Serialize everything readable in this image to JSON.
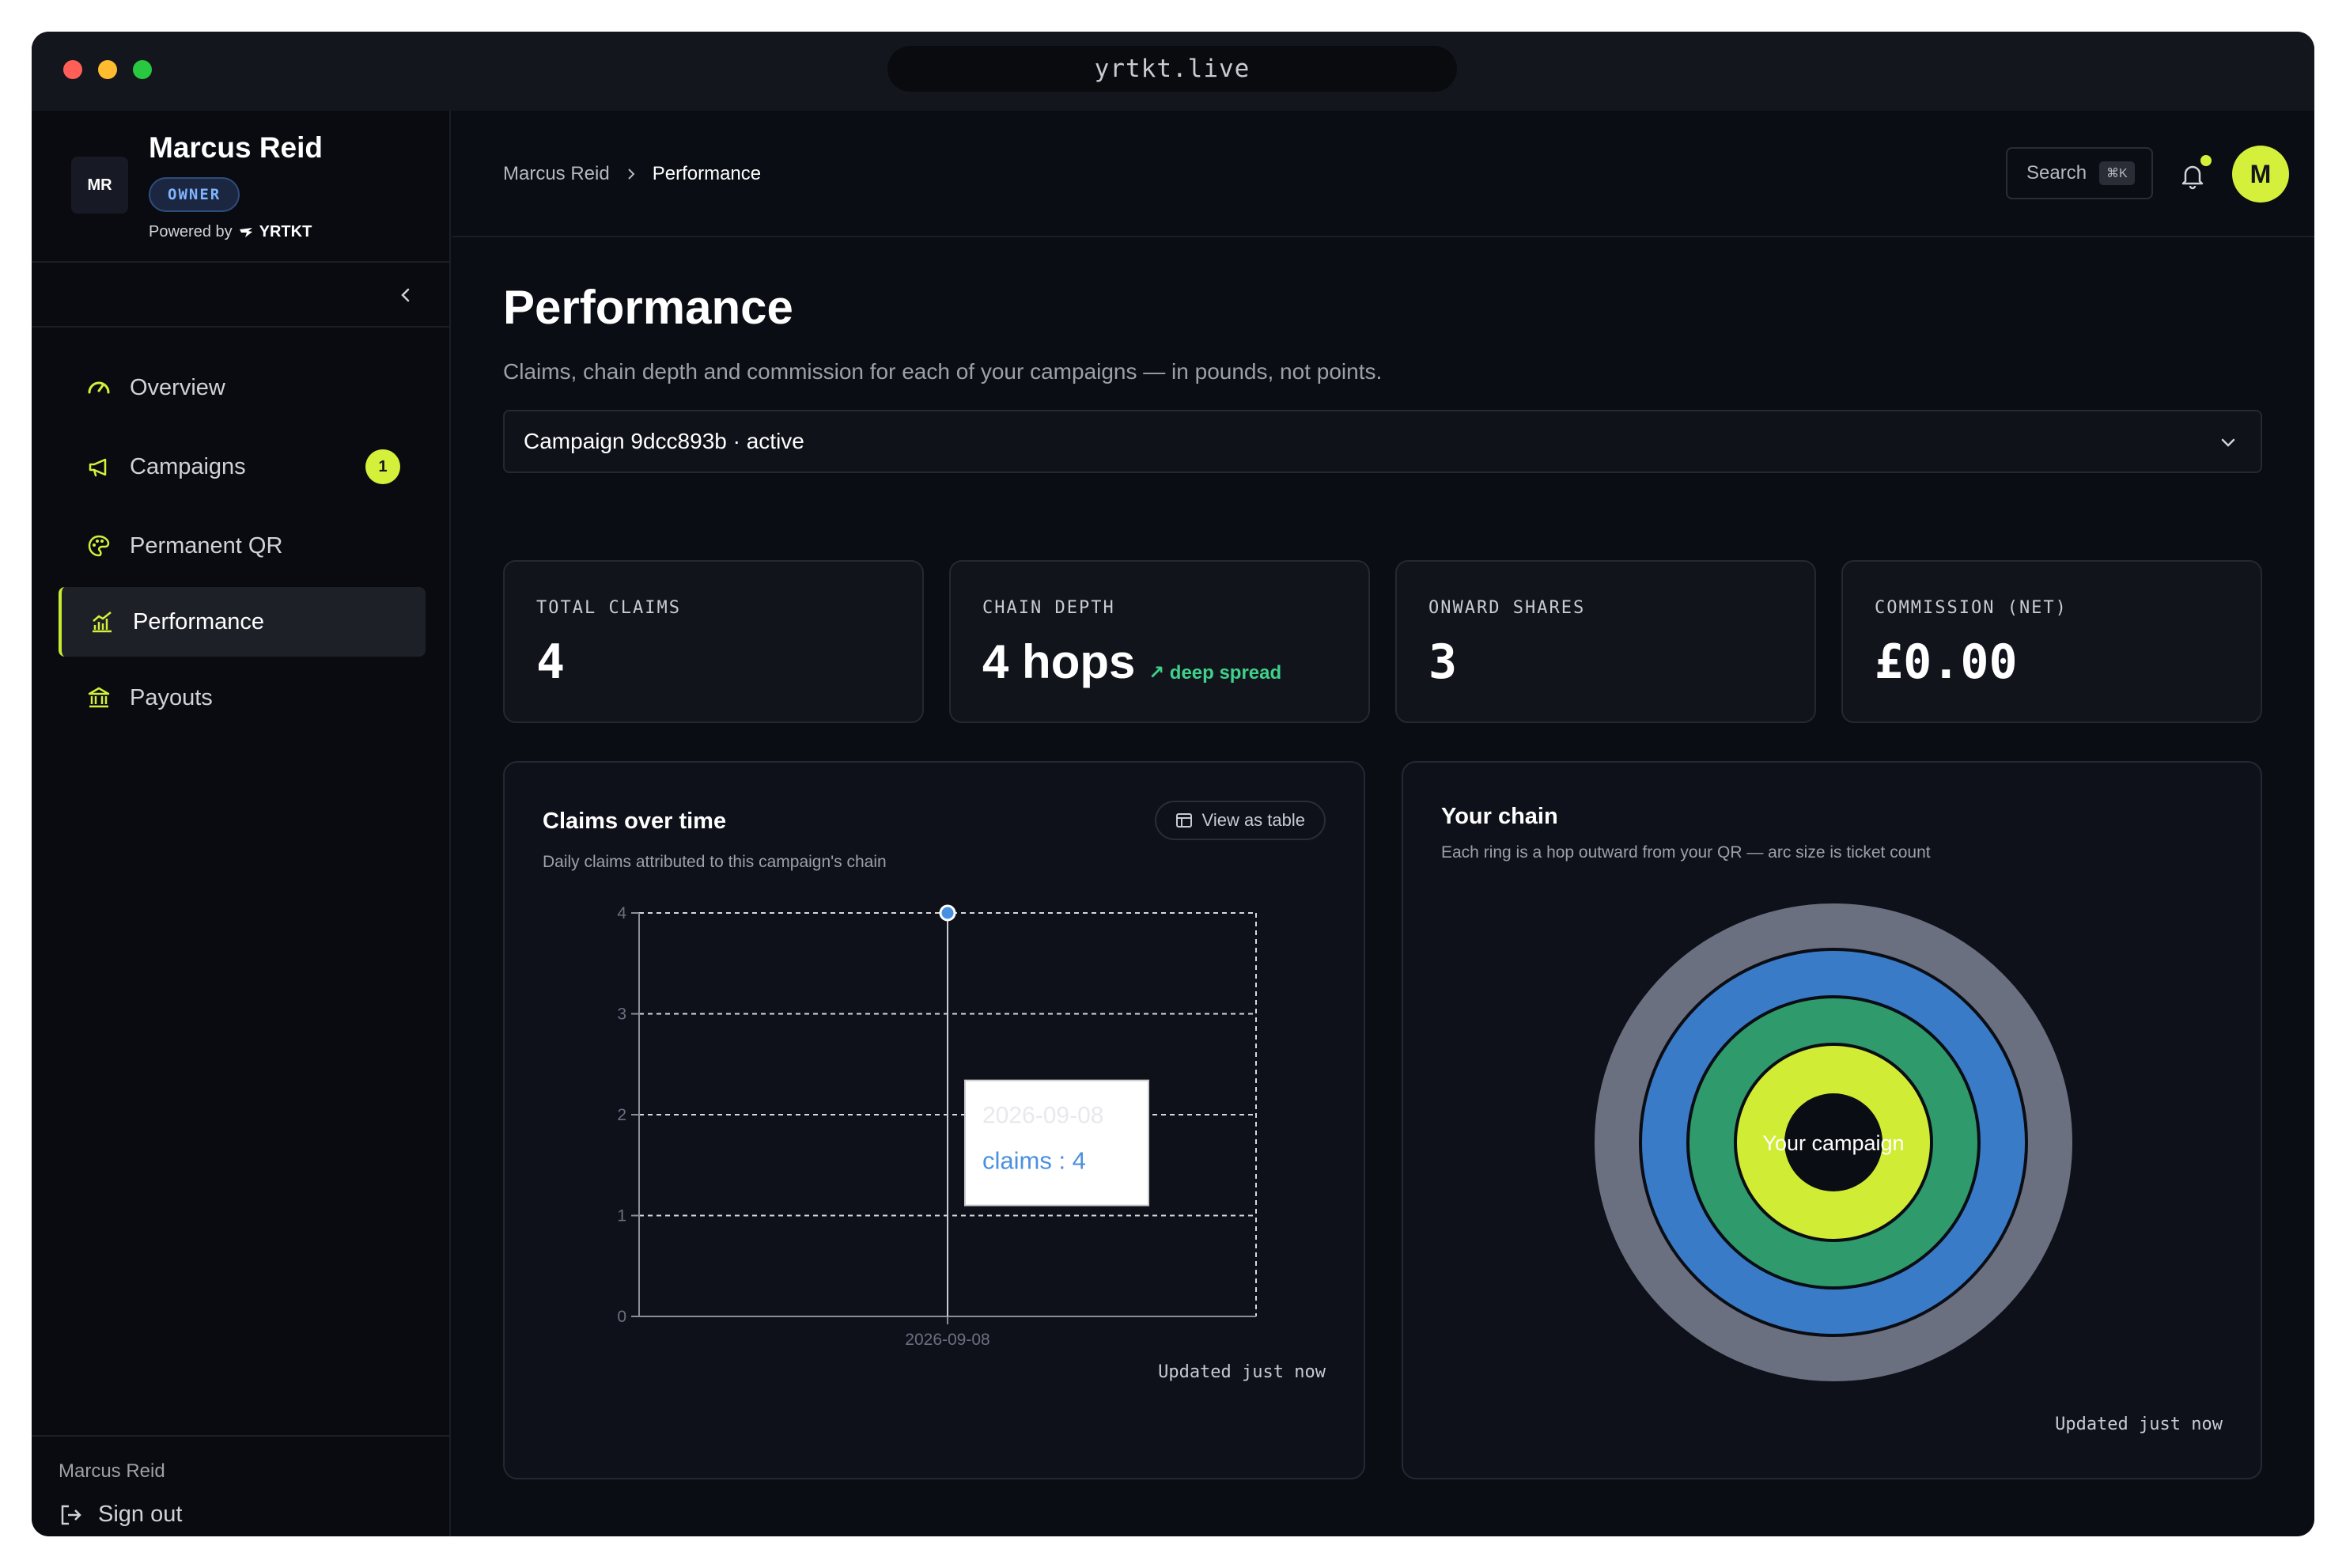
{
  "browser": {
    "url": "yrtkt.live"
  },
  "sidebar": {
    "org_name": "Marcus Reid",
    "logo_text": "MR",
    "role_badge": "OWNER",
    "powered_by": "Powered by",
    "brand": "YRTKT",
    "nav": [
      {
        "label": "Overview",
        "icon": "gauge-icon"
      },
      {
        "label": "Campaigns",
        "icon": "megaphone-icon",
        "badge": "1"
      },
      {
        "label": "Permanent QR",
        "icon": "palette-icon"
      },
      {
        "label": "Performance",
        "icon": "chart-icon",
        "active": true
      },
      {
        "label": "Payouts",
        "icon": "bank-icon"
      }
    ],
    "footer_name": "Marcus Reid",
    "sign_out": "Sign out"
  },
  "topbar": {
    "breadcrumb": [
      "Marcus Reid",
      "Performance"
    ],
    "search_label": "Search",
    "search_shortcut": "⌘K",
    "avatar_initial": "M",
    "accent": "#d4f03a"
  },
  "page": {
    "title": "Performance",
    "subtitle": "Claims, chain depth and commission for each of your campaigns — in pounds, not points.",
    "campaign_select": "Campaign 9dcc893b · active"
  },
  "kpis": [
    {
      "label": "TOTAL CLAIMS",
      "value": "4"
    },
    {
      "label": "CHAIN DEPTH",
      "value": "4 hops",
      "trend": "↗ deep spread"
    },
    {
      "label": "ONWARD SHARES",
      "value": "3"
    },
    {
      "label": "COMMISSION (NET)",
      "value": "£0.00"
    }
  ],
  "claims_card": {
    "title": "Claims over time",
    "subtitle": "Daily claims attributed to this campaign's chain",
    "view_table": "View as table",
    "updated": "Updated just now",
    "tooltip_date": "2026-09-08",
    "tooltip_value": "claims : 4"
  },
  "chain_card": {
    "title": "Your chain",
    "subtitle": "Each ring is a hop outward from your QR — arc size is ticket count",
    "center_label": "Your campaign",
    "updated": "Updated just now",
    "ring_colors": [
      "#d0ec34",
      "#2f9a6c",
      "#3a7bc8",
      "#6b7080"
    ]
  },
  "chart_data": {
    "type": "line",
    "title": "Claims over time",
    "x": [
      "2026-09-08"
    ],
    "series": [
      {
        "name": "claims",
        "values": [
          4
        ]
      }
    ],
    "ylim": [
      0,
      4
    ],
    "yticks": [
      0,
      1,
      2,
      3,
      4
    ],
    "grid": true
  }
}
